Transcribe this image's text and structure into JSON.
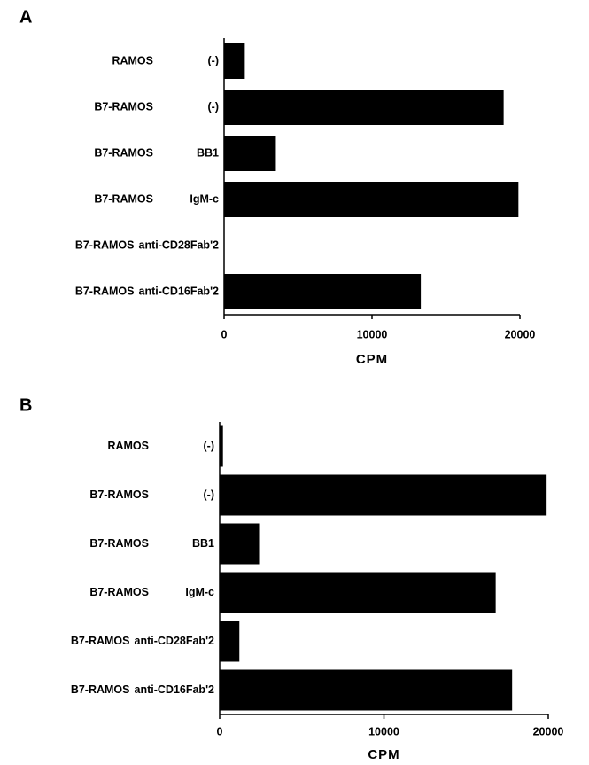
{
  "chart_data": [
    {
      "type": "barh",
      "panel_label": "A",
      "categories": [
        [
          "RAMOS",
          "(-)"
        ],
        [
          "B7-RAMOS",
          "(-)"
        ],
        [
          "B7-RAMOS",
          "BB1"
        ],
        [
          "B7-RAMOS",
          "IgM-c"
        ],
        [
          "B7-RAMOS",
          "anti-CD28Fab'2"
        ],
        [
          "B7-RAMOS",
          "anti-CD16Fab'2"
        ]
      ],
      "values": [
        1400,
        18900,
        3500,
        19900,
        0,
        13300
      ],
      "color": "#000000",
      "xlabel": "CPM",
      "xlim": [
        0,
        20000
      ],
      "xticks": [
        0,
        10000,
        20000
      ]
    },
    {
      "type": "barh",
      "panel_label": "B",
      "categories": [
        [
          "RAMOS",
          "(-)"
        ],
        [
          "B7-RAMOS",
          "(-)"
        ],
        [
          "B7-RAMOS",
          "BB1"
        ],
        [
          "B7-RAMOS",
          "IgM-c"
        ],
        [
          "B7-RAMOS",
          "anti-CD28Fab'2"
        ],
        [
          "B7-RAMOS",
          "anti-CD16Fab'2"
        ]
      ],
      "values": [
        200,
        19900,
        2400,
        16800,
        1200,
        17800
      ],
      "color": "#000000",
      "xlabel": "CPM",
      "xlim": [
        0,
        20000
      ],
      "xticks": [
        0,
        10000,
        20000
      ]
    }
  ]
}
